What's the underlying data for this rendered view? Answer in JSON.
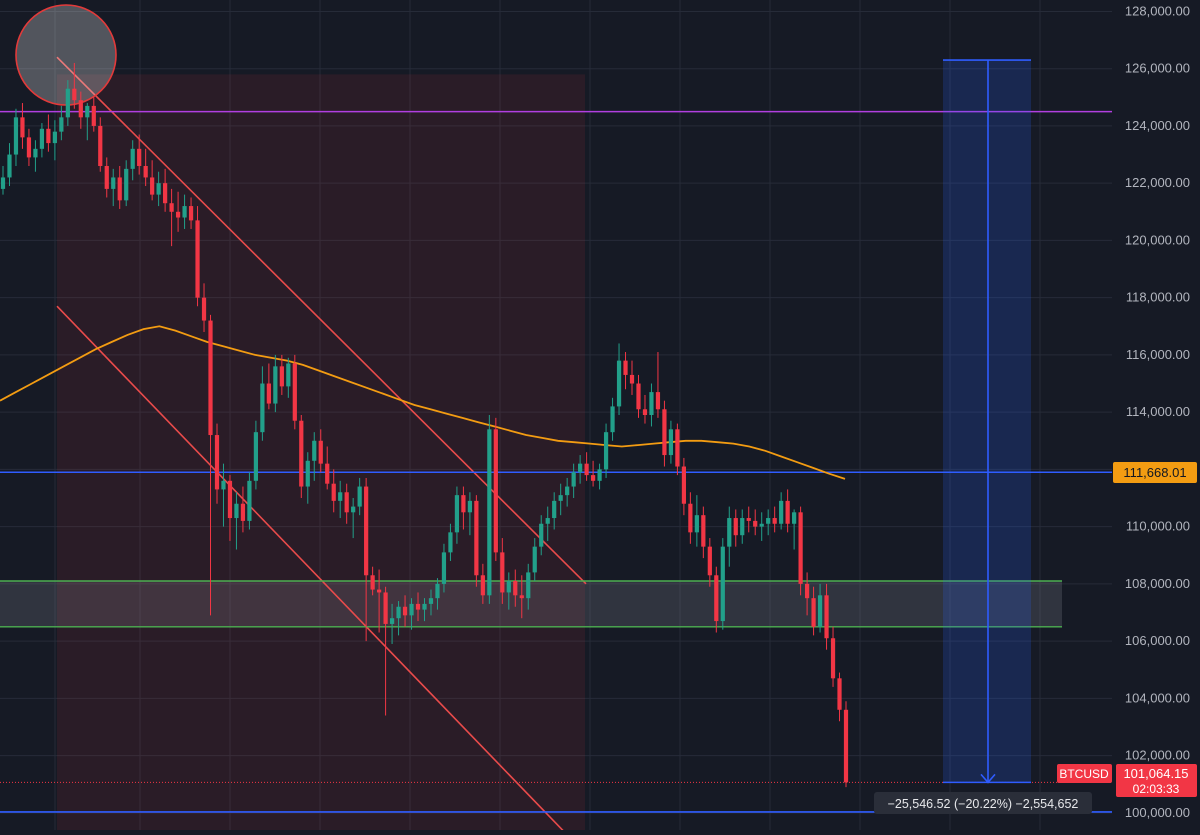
{
  "chart_data": {
    "type": "candlestick",
    "symbol": "BTCUSD",
    "ylim": [
      99400,
      128400
    ],
    "y_ticks": [
      "100,000.00",
      "102,000.00",
      "104,000.00",
      "106,000.00",
      "108,000.00",
      "110,000.00",
      "112,000.00",
      "114,000.00",
      "116,000.00",
      "118,000.00",
      "120,000.00",
      "122,000.00",
      "124,000.00",
      "126,000.00",
      "128,000.00"
    ],
    "y_tick_values": [
      100000,
      102000,
      104000,
      106000,
      108000,
      110000,
      112000,
      114000,
      116000,
      118000,
      120000,
      122000,
      124000,
      126000,
      128000
    ],
    "candles": [
      [
        121800,
        122600,
        121600,
        122200
      ],
      [
        122200,
        123400,
        121900,
        123000
      ],
      [
        123000,
        124600,
        122600,
        124300
      ],
      [
        124300,
        124800,
        123200,
        123600
      ],
      [
        123600,
        123900,
        122600,
        122900
      ],
      [
        122900,
        123500,
        122400,
        123200
      ],
      [
        123200,
        124100,
        122900,
        123900
      ],
      [
        123900,
        124400,
        123100,
        123400
      ],
      [
        123400,
        124200,
        122800,
        123800
      ],
      [
        123800,
        124700,
        123500,
        124300
      ],
      [
        124300,
        125600,
        124000,
        125300
      ],
      [
        125300,
        126200,
        124600,
        124900
      ],
      [
        124900,
        125200,
        123900,
        124300
      ],
      [
        124300,
        124800,
        123500,
        124700
      ],
      [
        124700,
        125000,
        123800,
        124000
      ],
      [
        124000,
        124300,
        122400,
        122600
      ],
      [
        122600,
        122900,
        121500,
        121800
      ],
      [
        121800,
        122500,
        121200,
        122200
      ],
      [
        122200,
        122600,
        121100,
        121400
      ],
      [
        121400,
        122800,
        121200,
        122500
      ],
      [
        122500,
        123500,
        122100,
        123200
      ],
      [
        123200,
        123700,
        122300,
        122600
      ],
      [
        122600,
        123200,
        121900,
        122200
      ],
      [
        122200,
        122800,
        121400,
        121600
      ],
      [
        121600,
        122400,
        121200,
        122000
      ],
      [
        122000,
        122500,
        121000,
        121300
      ],
      [
        121300,
        121800,
        119800,
        121000
      ],
      [
        121000,
        121700,
        120300,
        120800
      ],
      [
        120800,
        121600,
        120400,
        121200
      ],
      [
        121200,
        121500,
        120400,
        120700
      ],
      [
        120700,
        121200,
        117700,
        118000
      ],
      [
        118000,
        118500,
        116800,
        117200
      ],
      [
        117200,
        117400,
        106900,
        113200
      ],
      [
        113200,
        113600,
        110800,
        111300
      ],
      [
        111300,
        112200,
        110000,
        111600
      ],
      [
        111600,
        111800,
        109500,
        110300
      ],
      [
        110300,
        111200,
        109200,
        110800
      ],
      [
        110800,
        111400,
        109800,
        110200
      ],
      [
        110200,
        111900,
        109900,
        111600
      ],
      [
        111600,
        113700,
        111300,
        113300
      ],
      [
        113300,
        115600,
        113000,
        115000
      ],
      [
        115000,
        115700,
        114100,
        114300
      ],
      [
        114300,
        116000,
        114000,
        115600
      ],
      [
        115600,
        116000,
        114600,
        114900
      ],
      [
        114900,
        115900,
        114500,
        115700
      ],
      [
        115700,
        116000,
        113400,
        113700
      ],
      [
        113700,
        113900,
        111000,
        111400
      ],
      [
        111400,
        112600,
        110800,
        112300
      ],
      [
        112300,
        113300,
        111600,
        113000
      ],
      [
        113000,
        113400,
        111900,
        112200
      ],
      [
        112200,
        112800,
        111300,
        111500
      ],
      [
        111500,
        112000,
        110500,
        110900
      ],
      [
        110900,
        111600,
        110300,
        111200
      ],
      [
        111200,
        111500,
        110100,
        110500
      ],
      [
        110500,
        111000,
        109600,
        110700
      ],
      [
        110700,
        111700,
        110400,
        111400
      ],
      [
        111400,
        111700,
        106000,
        108300
      ],
      [
        108300,
        108600,
        107600,
        107800
      ],
      [
        107800,
        108500,
        106300,
        107700
      ],
      [
        107700,
        107900,
        103400,
        106600
      ],
      [
        106600,
        107300,
        105900,
        106800
      ],
      [
        106800,
        107400,
        106200,
        107200
      ],
      [
        107200,
        107600,
        106500,
        106900
      ],
      [
        106900,
        107500,
        106400,
        107300
      ],
      [
        107300,
        107700,
        106700,
        107100
      ],
      [
        107100,
        107500,
        106700,
        107300
      ],
      [
        107300,
        107800,
        106900,
        107500
      ],
      [
        107500,
        108200,
        107100,
        108000
      ],
      [
        108000,
        109400,
        107700,
        109100
      ],
      [
        109100,
        110100,
        108800,
        109800
      ],
      [
        109800,
        111400,
        109400,
        111100
      ],
      [
        111100,
        111400,
        109900,
        110500
      ],
      [
        110500,
        111200,
        109700,
        110900
      ],
      [
        110900,
        111100,
        107900,
        108300
      ],
      [
        108300,
        108700,
        107300,
        107600
      ],
      [
        107600,
        113900,
        107300,
        113400
      ],
      [
        113400,
        113800,
        108800,
        109100
      ],
      [
        109100,
        109600,
        107300,
        107700
      ],
      [
        107700,
        108400,
        107100,
        108100
      ],
      [
        108100,
        108500,
        107200,
        107600
      ],
      [
        107600,
        108300,
        106800,
        107500
      ],
      [
        107500,
        108700,
        107100,
        108400
      ],
      [
        108400,
        109600,
        108100,
        109300
      ],
      [
        109300,
        110400,
        109000,
        110100
      ],
      [
        110100,
        110700,
        109500,
        110300
      ],
      [
        110300,
        111200,
        109900,
        110900
      ],
      [
        110900,
        111500,
        110400,
        111100
      ],
      [
        111100,
        111700,
        110700,
        111400
      ],
      [
        111400,
        112200,
        111000,
        111900
      ],
      [
        111900,
        112500,
        111500,
        112200
      ],
      [
        112200,
        112600,
        111600,
        111800
      ],
      [
        111800,
        112300,
        111400,
        111600
      ],
      [
        111600,
        112200,
        111300,
        112000
      ],
      [
        112000,
        113600,
        111700,
        113300
      ],
      [
        113300,
        114500,
        113000,
        114200
      ],
      [
        114200,
        116400,
        113900,
        115800
      ],
      [
        115800,
        116100,
        114800,
        115300
      ],
      [
        115300,
        115800,
        114600,
        115000
      ],
      [
        115000,
        115300,
        113800,
        114100
      ],
      [
        114100,
        114600,
        113600,
        113900
      ],
      [
        113900,
        115000,
        113500,
        114700
      ],
      [
        114700,
        116100,
        113800,
        114100
      ],
      [
        114100,
        114400,
        112100,
        112500
      ],
      [
        112500,
        113700,
        112200,
        113400
      ],
      [
        113400,
        113600,
        111800,
        112100
      ],
      [
        112100,
        112400,
        110400,
        110800
      ],
      [
        110800,
        111200,
        109400,
        109800
      ],
      [
        109800,
        111100,
        109300,
        110400
      ],
      [
        110400,
        110700,
        108900,
        109300
      ],
      [
        109300,
        109600,
        107900,
        108300
      ],
      [
        108300,
        108600,
        106300,
        106700
      ],
      [
        106700,
        109600,
        106400,
        109300
      ],
      [
        109300,
        110700,
        108600,
        110300
      ],
      [
        110300,
        110600,
        109300,
        109700
      ],
      [
        109700,
        110600,
        109400,
        110300
      ],
      [
        110300,
        110700,
        109800,
        110200
      ],
      [
        110200,
        110600,
        109700,
        110000
      ],
      [
        110000,
        110500,
        109500,
        110100
      ],
      [
        110100,
        110600,
        109700,
        110300
      ],
      [
        110300,
        110700,
        109800,
        110100
      ],
      [
        110100,
        111200,
        109900,
        110900
      ],
      [
        110900,
        111300,
        109800,
        110100
      ],
      [
        110100,
        110600,
        109200,
        110500
      ],
      [
        110500,
        110700,
        107600,
        108000
      ],
      [
        108000,
        108400,
        106900,
        107500
      ],
      [
        107500,
        107900,
        106200,
        106500
      ],
      [
        106500,
        108000,
        106300,
        107600
      ],
      [
        107600,
        108000,
        105700,
        106100
      ],
      [
        106100,
        106500,
        104400,
        104700
      ],
      [
        104700,
        104900,
        103200,
        103600
      ],
      [
        103600,
        103900,
        100900,
        101064
      ]
    ],
    "moving_average": [
      114400,
      114700,
      115000,
      115300,
      115600,
      115900,
      116200,
      116450,
      116700,
      116900,
      117000,
      116850,
      116650,
      116450,
      116300,
      116150,
      116000,
      115900,
      115800,
      115650,
      115450,
      115250,
      115050,
      114850,
      114650,
      114450,
      114250,
      114100,
      113950,
      113800,
      113650,
      113500,
      113350,
      113200,
      113100,
      113000,
      112950,
      112900,
      112850,
      112800,
      112850,
      112900,
      112950,
      113000,
      113000,
      112950,
      112900,
      112800,
      112650,
      112450,
      112250,
      112050,
      111850,
      111668
    ],
    "lines": [
      {
        "name": "upper-purple",
        "value": 124500,
        "color": "#b13fe0"
      },
      {
        "name": "middle-blue",
        "value": 111900,
        "color": "#2f5cff"
      },
      {
        "name": "bottom-blue",
        "value": 100030,
        "color": "#2f5cff"
      },
      {
        "name": "green-top",
        "value": 108100,
        "color": "#4caf50"
      },
      {
        "name": "green-bottom",
        "value": 106500,
        "color": "#4caf50"
      },
      {
        "name": "current-price",
        "value": 101064,
        "color": "#f23645"
      }
    ],
    "price_labels": {
      "ma_value": "111,668.01",
      "symbol_tag": "BTCUSD",
      "last_price": "101,064.15",
      "countdown": "02:03:33",
      "measure": "−25,546.52 (−20.22%) −2,554,652"
    },
    "colors": {
      "up": "#22a08a",
      "down": "#f23645",
      "ma": "#f39c12",
      "channel": "#e94b4b",
      "measure": "#2f5cff",
      "axis_text": "#b2b5be",
      "background": "#161a25",
      "grid": "#262b38"
    },
    "grid": true
  }
}
